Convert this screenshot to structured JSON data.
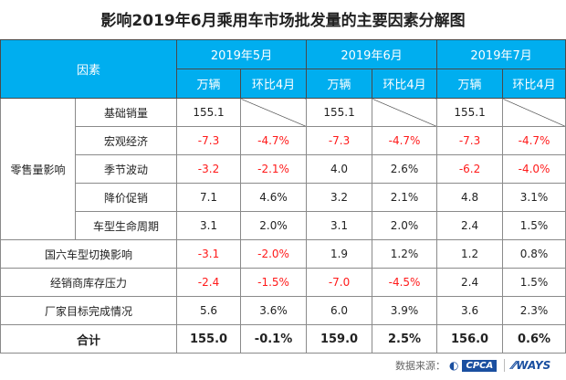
{
  "title": "影响2019年6月乘用车市场批发量的主要因素分解图",
  "header": {
    "factor": "因素",
    "months": [
      "2019年5月",
      "2019年6月",
      "2019年7月"
    ],
    "sub": [
      "万辆",
      "环比4月"
    ]
  },
  "group_label": "零售量影响",
  "rows": [
    {
      "label": "基础销量",
      "v": [
        "155.1",
        "",
        "155.1",
        "",
        "155.1",
        ""
      ]
    },
    {
      "label": "宏观经济",
      "v": [
        "-7.3",
        "-4.7%",
        "-7.3",
        "-4.7%",
        "-7.3",
        "-4.7%"
      ]
    },
    {
      "label": "季节波动",
      "v": [
        "-3.2",
        "-2.1%",
        "4.0",
        "2.6%",
        "-6.2",
        "-4.0%"
      ]
    },
    {
      "label": "降价促销",
      "v": [
        "7.1",
        "4.6%",
        "3.2",
        "2.1%",
        "4.8",
        "3.1%"
      ]
    },
    {
      "label": "车型生命周期",
      "v": [
        "3.1",
        "2.0%",
        "3.1",
        "2.0%",
        "2.4",
        "1.5%"
      ]
    },
    {
      "label": "国六车型切换影响",
      "v": [
        "-3.1",
        "-2.0%",
        "1.9",
        "1.2%",
        "1.2",
        "0.8%"
      ]
    },
    {
      "label": "经销商库存压力",
      "v": [
        "-2.4",
        "-1.5%",
        "-7.0",
        "-4.5%",
        "2.4",
        "1.5%"
      ]
    },
    {
      "label": "厂家目标完成情况",
      "v": [
        "5.6",
        "3.6%",
        "6.0",
        "3.9%",
        "3.6",
        "2.3%"
      ]
    },
    {
      "label": "合计",
      "v": [
        "155.0",
        "-0.1%",
        "159.0",
        "2.5%",
        "156.0",
        "0.6%"
      ]
    }
  ],
  "source": {
    "label": "数据来源：",
    "logo1": "CPCA",
    "logo2": "WAYS"
  },
  "colors": {
    "header": "#00aeef",
    "negative": "#ff1a1a"
  },
  "chart_data": {
    "type": "table",
    "title": "影响2019年6月乘用车市场批发量的主要因素分解图",
    "columns": [
      "因素",
      "2019年5月 万辆",
      "2019年5月 环比4月",
      "2019年6月 万辆",
      "2019年6月 环比4月",
      "2019年7月 万辆",
      "2019年7月 环比4月"
    ]
  }
}
